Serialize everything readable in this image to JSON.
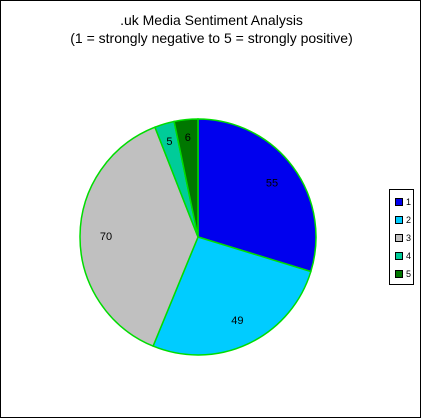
{
  "chart_data": {
    "type": "pie",
    "title": ".uk Media Sentiment Analysis",
    "subtitle": "(1 = strongly negative to 5 = strongly positive)",
    "categories": [
      "1",
      "2",
      "3",
      "4",
      "5"
    ],
    "values": [
      55,
      49,
      70,
      5,
      6
    ],
    "colors": [
      "#0000ee",
      "#00ccff",
      "#c0c0c0",
      "#00cc99",
      "#007700"
    ],
    "edge_color": "#00dd00",
    "legend_position": "right",
    "start_angle": "top",
    "direction": "clockwise"
  }
}
